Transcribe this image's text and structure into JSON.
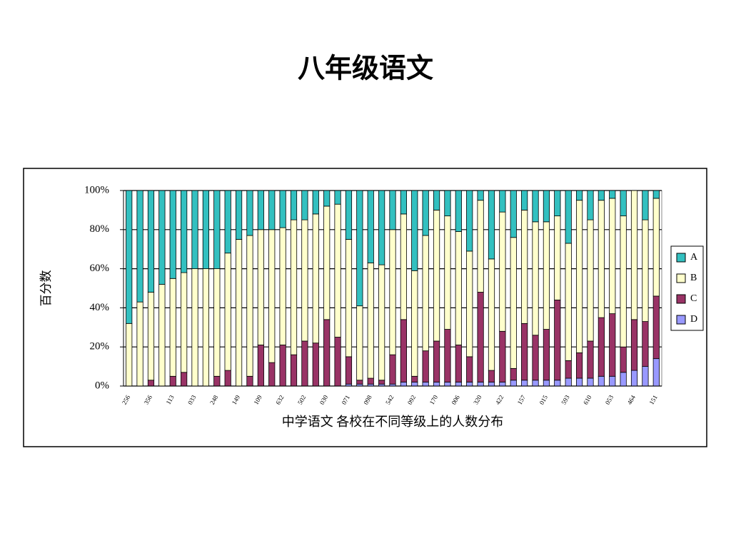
{
  "chart_data": {
    "type": "stacked_bar_percent",
    "title": "八年级语文",
    "y_label": "百分数",
    "x_label": "中学语文  各校在不同等级上的人数分布",
    "categories": [
      "256",
      null,
      "356",
      null,
      "113",
      null,
      "033",
      null,
      "248",
      null,
      "149",
      null,
      "109",
      null,
      "632",
      null,
      "502",
      null,
      "030",
      null,
      "071",
      null,
      "098",
      null,
      "542",
      null,
      "092",
      null,
      "170",
      null,
      "006",
      null,
      "320",
      null,
      "422",
      null,
      "157",
      null,
      "015",
      null,
      "593",
      null,
      "610",
      null,
      "053",
      null,
      "464",
      null,
      "151"
    ],
    "series": [
      {
        "name": "A",
        "color": "#33c0c0",
        "values": [
          68,
          57,
          52,
          48,
          45,
          42,
          40,
          40,
          40,
          32,
          25,
          23,
          20,
          20,
          19,
          15,
          15,
          12,
          8,
          7,
          25,
          59,
          37,
          38,
          20,
          12,
          41,
          23,
          10,
          13,
          21,
          31,
          5,
          35,
          11,
          24,
          10,
          16,
          16,
          13,
          27,
          5,
          15,
          5,
          4,
          13,
          0,
          15,
          4
        ]
      },
      {
        "name": "B",
        "color": "#ffffcc",
        "values": [
          32,
          43,
          45,
          52,
          50,
          51,
          60,
          60,
          55,
          60,
          75,
          72,
          59,
          68,
          60,
          69,
          62,
          66,
          58,
          68,
          60,
          38,
          59,
          59,
          64,
          54,
          54,
          59,
          67,
          58,
          58,
          54,
          47,
          57,
          61,
          67,
          58,
          58,
          55,
          43,
          60,
          78,
          62,
          60,
          59,
          67,
          66,
          52,
          50
        ]
      },
      {
        "name": "C",
        "color": "#993366",
        "values": [
          0,
          0,
          3,
          0,
          5,
          7,
          0,
          0,
          5,
          8,
          0,
          5,
          21,
          12,
          21,
          16,
          23,
          22,
          34,
          25,
          14,
          2,
          3,
          2,
          15,
          32,
          3,
          16,
          21,
          27,
          19,
          13,
          46,
          6,
          26,
          6,
          29,
          23,
          26,
          41,
          9,
          13,
          19,
          30,
          32,
          13,
          26,
          23,
          32
        ]
      },
      {
        "name": "D",
        "color": "#9999ff",
        "values": [
          0,
          0,
          0,
          0,
          0,
          0,
          0,
          0,
          0,
          0,
          0,
          0,
          0,
          0,
          0,
          0,
          0,
          0,
          0,
          0,
          1,
          1,
          1,
          1,
          1,
          2,
          2,
          2,
          2,
          2,
          2,
          2,
          2,
          2,
          2,
          3,
          3,
          3,
          3,
          3,
          4,
          4,
          4,
          5,
          5,
          7,
          8,
          10,
          14
        ]
      }
    ],
    "ylim": [
      0,
      100
    ],
    "yticks": [
      {
        "value": 0,
        "label": "0%"
      },
      {
        "value": 20,
        "label": "20%"
      },
      {
        "value": 40,
        "label": "40%"
      },
      {
        "value": 60,
        "label": "60%"
      },
      {
        "value": 80,
        "label": "80%"
      },
      {
        "value": 100,
        "label": "100%"
      }
    ],
    "grid": true,
    "legend": "right"
  }
}
